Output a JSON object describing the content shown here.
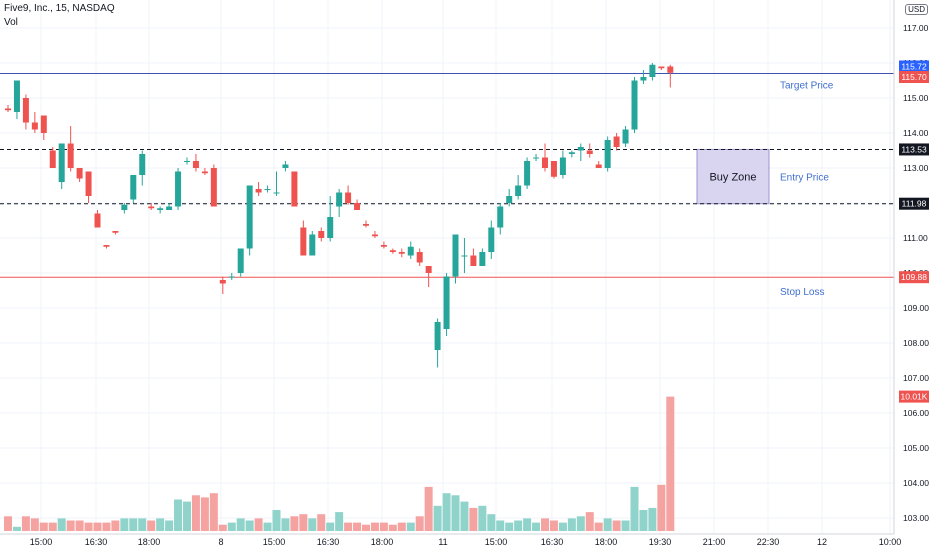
{
  "header": {
    "symbol": "Five9, Inc., 15, NASDAQ",
    "indicator": "Vol",
    "currency_badge": "USD"
  },
  "colors": {
    "up": "#26a69a",
    "down": "#ef5350",
    "up_vol": "#8fd3cb",
    "down_vol": "#f5a3a1",
    "target_line": "#3f51b5",
    "target_badge": "#2962ff",
    "stop_line": "#ef5350",
    "zone_fill": "#d9d4ef",
    "zone_border": "#9c94d6",
    "annotation": "#3f6fcf"
  },
  "chart_data": {
    "type": "candlestick",
    "title": "Five9, Inc., 15, NASDAQ",
    "ylim": [
      102.6,
      117.8
    ],
    "y_ticks": [
      103,
      104,
      105,
      106,
      107,
      108,
      109,
      110,
      111,
      112,
      113,
      114,
      115,
      116,
      117
    ],
    "x_ticks": [
      "15:00",
      "16:30",
      "18:00",
      "8",
      "15:00",
      "16:30",
      "18:00",
      "11",
      "15:00",
      "16:30",
      "18:00",
      "19:30",
      "21:00",
      "22:30",
      "12",
      "10:00"
    ],
    "candles": [
      [
        114.7,
        114.8,
        114.6,
        114.65
      ],
      [
        114.6,
        115.5,
        114.4,
        115.5
      ],
      [
        115.0,
        115.1,
        114.1,
        114.3
      ],
      [
        114.3,
        114.6,
        114.0,
        114.1
      ],
      [
        114.5,
        114.5,
        113.8,
        114.0
      ],
      [
        113.5,
        113.6,
        113.0,
        113.0
      ],
      [
        112.6,
        113.7,
        112.4,
        113.7
      ],
      [
        113.7,
        114.2,
        112.9,
        113.0
      ],
      [
        113.0,
        113.0,
        112.6,
        112.7
      ],
      [
        112.9,
        112.9,
        112.0,
        112.2
      ],
      [
        111.7,
        111.8,
        111.3,
        111.3
      ],
      [
        110.8,
        110.8,
        110.7,
        110.75
      ],
      [
        111.2,
        111.2,
        111.1,
        111.15
      ],
      [
        111.8,
        112.0,
        111.7,
        111.95
      ],
      [
        112.1,
        112.8,
        112.0,
        112.8
      ],
      [
        112.8,
        113.5,
        112.5,
        113.4
      ],
      [
        111.9,
        112.0,
        111.8,
        111.85
      ],
      [
        111.8,
        111.9,
        111.7,
        111.85
      ],
      [
        111.8,
        112.0,
        111.8,
        111.9
      ],
      [
        111.9,
        113.0,
        111.8,
        112.9
      ],
      [
        113.2,
        113.3,
        113.1,
        113.2
      ],
      [
        113.2,
        113.4,
        112.9,
        113.0
      ],
      [
        112.9,
        113.0,
        112.8,
        112.85
      ],
      [
        113.0,
        113.1,
        111.9,
        111.9
      ],
      [
        109.8,
        109.9,
        109.4,
        109.7
      ],
      [
        109.9,
        110.0,
        109.8,
        109.9
      ],
      [
        110.0,
        110.7,
        109.9,
        110.7
      ],
      [
        110.7,
        112.5,
        110.5,
        112.5
      ],
      [
        112.4,
        112.6,
        112.2,
        112.3
      ],
      [
        112.4,
        112.5,
        112.3,
        112.4
      ],
      [
        112.3,
        112.9,
        112.2,
        112.3
      ],
      [
        113.0,
        113.2,
        112.9,
        113.1
      ],
      [
        112.9,
        112.9,
        111.9,
        111.9
      ],
      [
        111.3,
        111.5,
        110.5,
        110.5
      ],
      [
        110.5,
        111.2,
        110.5,
        111.1
      ],
      [
        111.2,
        111.3,
        110.9,
        111.0
      ],
      [
        111.0,
        112.2,
        110.9,
        111.6
      ],
      [
        111.9,
        112.4,
        111.6,
        112.3
      ],
      [
        112.3,
        112.5,
        111.95,
        112.0
      ],
      [
        112.0,
        112.1,
        111.8,
        111.8
      ],
      [
        111.4,
        111.5,
        111.3,
        111.35
      ],
      [
        111.1,
        111.2,
        111.0,
        111.05
      ],
      [
        110.8,
        110.9,
        110.7,
        110.75
      ],
      [
        110.65,
        110.7,
        110.55,
        110.6
      ],
      [
        110.6,
        110.7,
        110.45,
        110.55
      ],
      [
        110.5,
        110.9,
        110.4,
        110.75
      ],
      [
        110.6,
        110.7,
        110.2,
        110.3
      ],
      [
        110.2,
        110.2,
        109.6,
        110.0
      ],
      [
        107.8,
        108.7,
        107.3,
        108.6
      ],
      [
        108.4,
        110.0,
        108.2,
        109.9
      ],
      [
        109.9,
        111.1,
        109.7,
        111.1
      ],
      [
        110.5,
        111.0,
        110.0,
        110.5
      ],
      [
        110.5,
        110.7,
        110.2,
        110.2
      ],
      [
        110.2,
        110.7,
        110.2,
        110.6
      ],
      [
        110.6,
        111.5,
        110.4,
        111.3
      ],
      [
        111.3,
        112.0,
        111.1,
        111.9
      ],
      [
        112.0,
        112.4,
        111.9,
        112.2
      ],
      [
        112.2,
        112.8,
        112.1,
        112.5
      ],
      [
        112.5,
        113.3,
        112.4,
        113.2
      ],
      [
        113.3,
        113.4,
        113.2,
        113.3
      ],
      [
        113.3,
        113.7,
        112.9,
        113.0
      ],
      [
        113.2,
        113.2,
        112.7,
        112.75
      ],
      [
        112.8,
        113.5,
        112.7,
        113.3
      ],
      [
        113.4,
        113.5,
        113.3,
        113.45
      ],
      [
        113.5,
        113.7,
        113.2,
        113.6
      ],
      [
        113.5,
        113.7,
        113.3,
        113.4
      ],
      [
        113.1,
        113.2,
        113.0,
        113.0
      ],
      [
        113.0,
        113.9,
        112.9,
        113.8
      ],
      [
        113.9,
        114.0,
        113.5,
        113.6
      ],
      [
        113.7,
        114.2,
        113.6,
        114.1
      ],
      [
        114.1,
        115.6,
        114.0,
        115.5
      ],
      [
        115.5,
        115.8,
        115.4,
        115.6
      ],
      [
        115.6,
        116.0,
        115.5,
        115.95
      ],
      [
        115.9,
        115.9,
        115.8,
        115.85
      ],
      [
        115.9,
        115.95,
        115.3,
        115.72
      ]
    ],
    "volumes": [
      0.35,
      0.1,
      0.35,
      0.3,
      0.2,
      0.2,
      0.3,
      0.25,
      0.25,
      0.2,
      0.2,
      0.2,
      0.25,
      0.3,
      0.3,
      0.3,
      0.25,
      0.3,
      0.25,
      0.75,
      0.7,
      0.85,
      0.8,
      0.9,
      0.15,
      0.2,
      0.3,
      0.25,
      0.3,
      0.2,
      0.5,
      0.3,
      0.35,
      0.4,
      0.3,
      0.4,
      0.2,
      0.45,
      0.2,
      0.2,
      0.15,
      0.2,
      0.2,
      0.15,
      0.2,
      0.2,
      0.35,
      1.05,
      0.6,
      0.9,
      0.85,
      0.7,
      0.55,
      0.6,
      0.4,
      0.25,
      0.2,
      0.25,
      0.3,
      0.2,
      0.3,
      0.25,
      0.2,
      0.3,
      0.35,
      0.45,
      0.2,
      0.3,
      0.25,
      0.25,
      1.05,
      0.5,
      0.55,
      1.1,
      3.2
    ],
    "last_volume_label": "10.01K",
    "levels": [
      {
        "name": "Target Price",
        "value": 115.7,
        "badge": "115.70",
        "style": "solid"
      },
      {
        "name": "Entry Price",
        "value": 113.53,
        "badge": "113.53",
        "style": "dashed"
      },
      {
        "name": "",
        "value": 111.98,
        "badge": "111.98",
        "style": "dashed"
      },
      {
        "name": "Stop Loss",
        "value": 109.88,
        "badge": "109.88",
        "style": "solid"
      }
    ],
    "last_price": {
      "value": 115.72,
      "label": "115.72"
    },
    "buy_zone": {
      "label": "Buy Zone",
      "top": 113.53,
      "bottom": 111.98
    }
  }
}
